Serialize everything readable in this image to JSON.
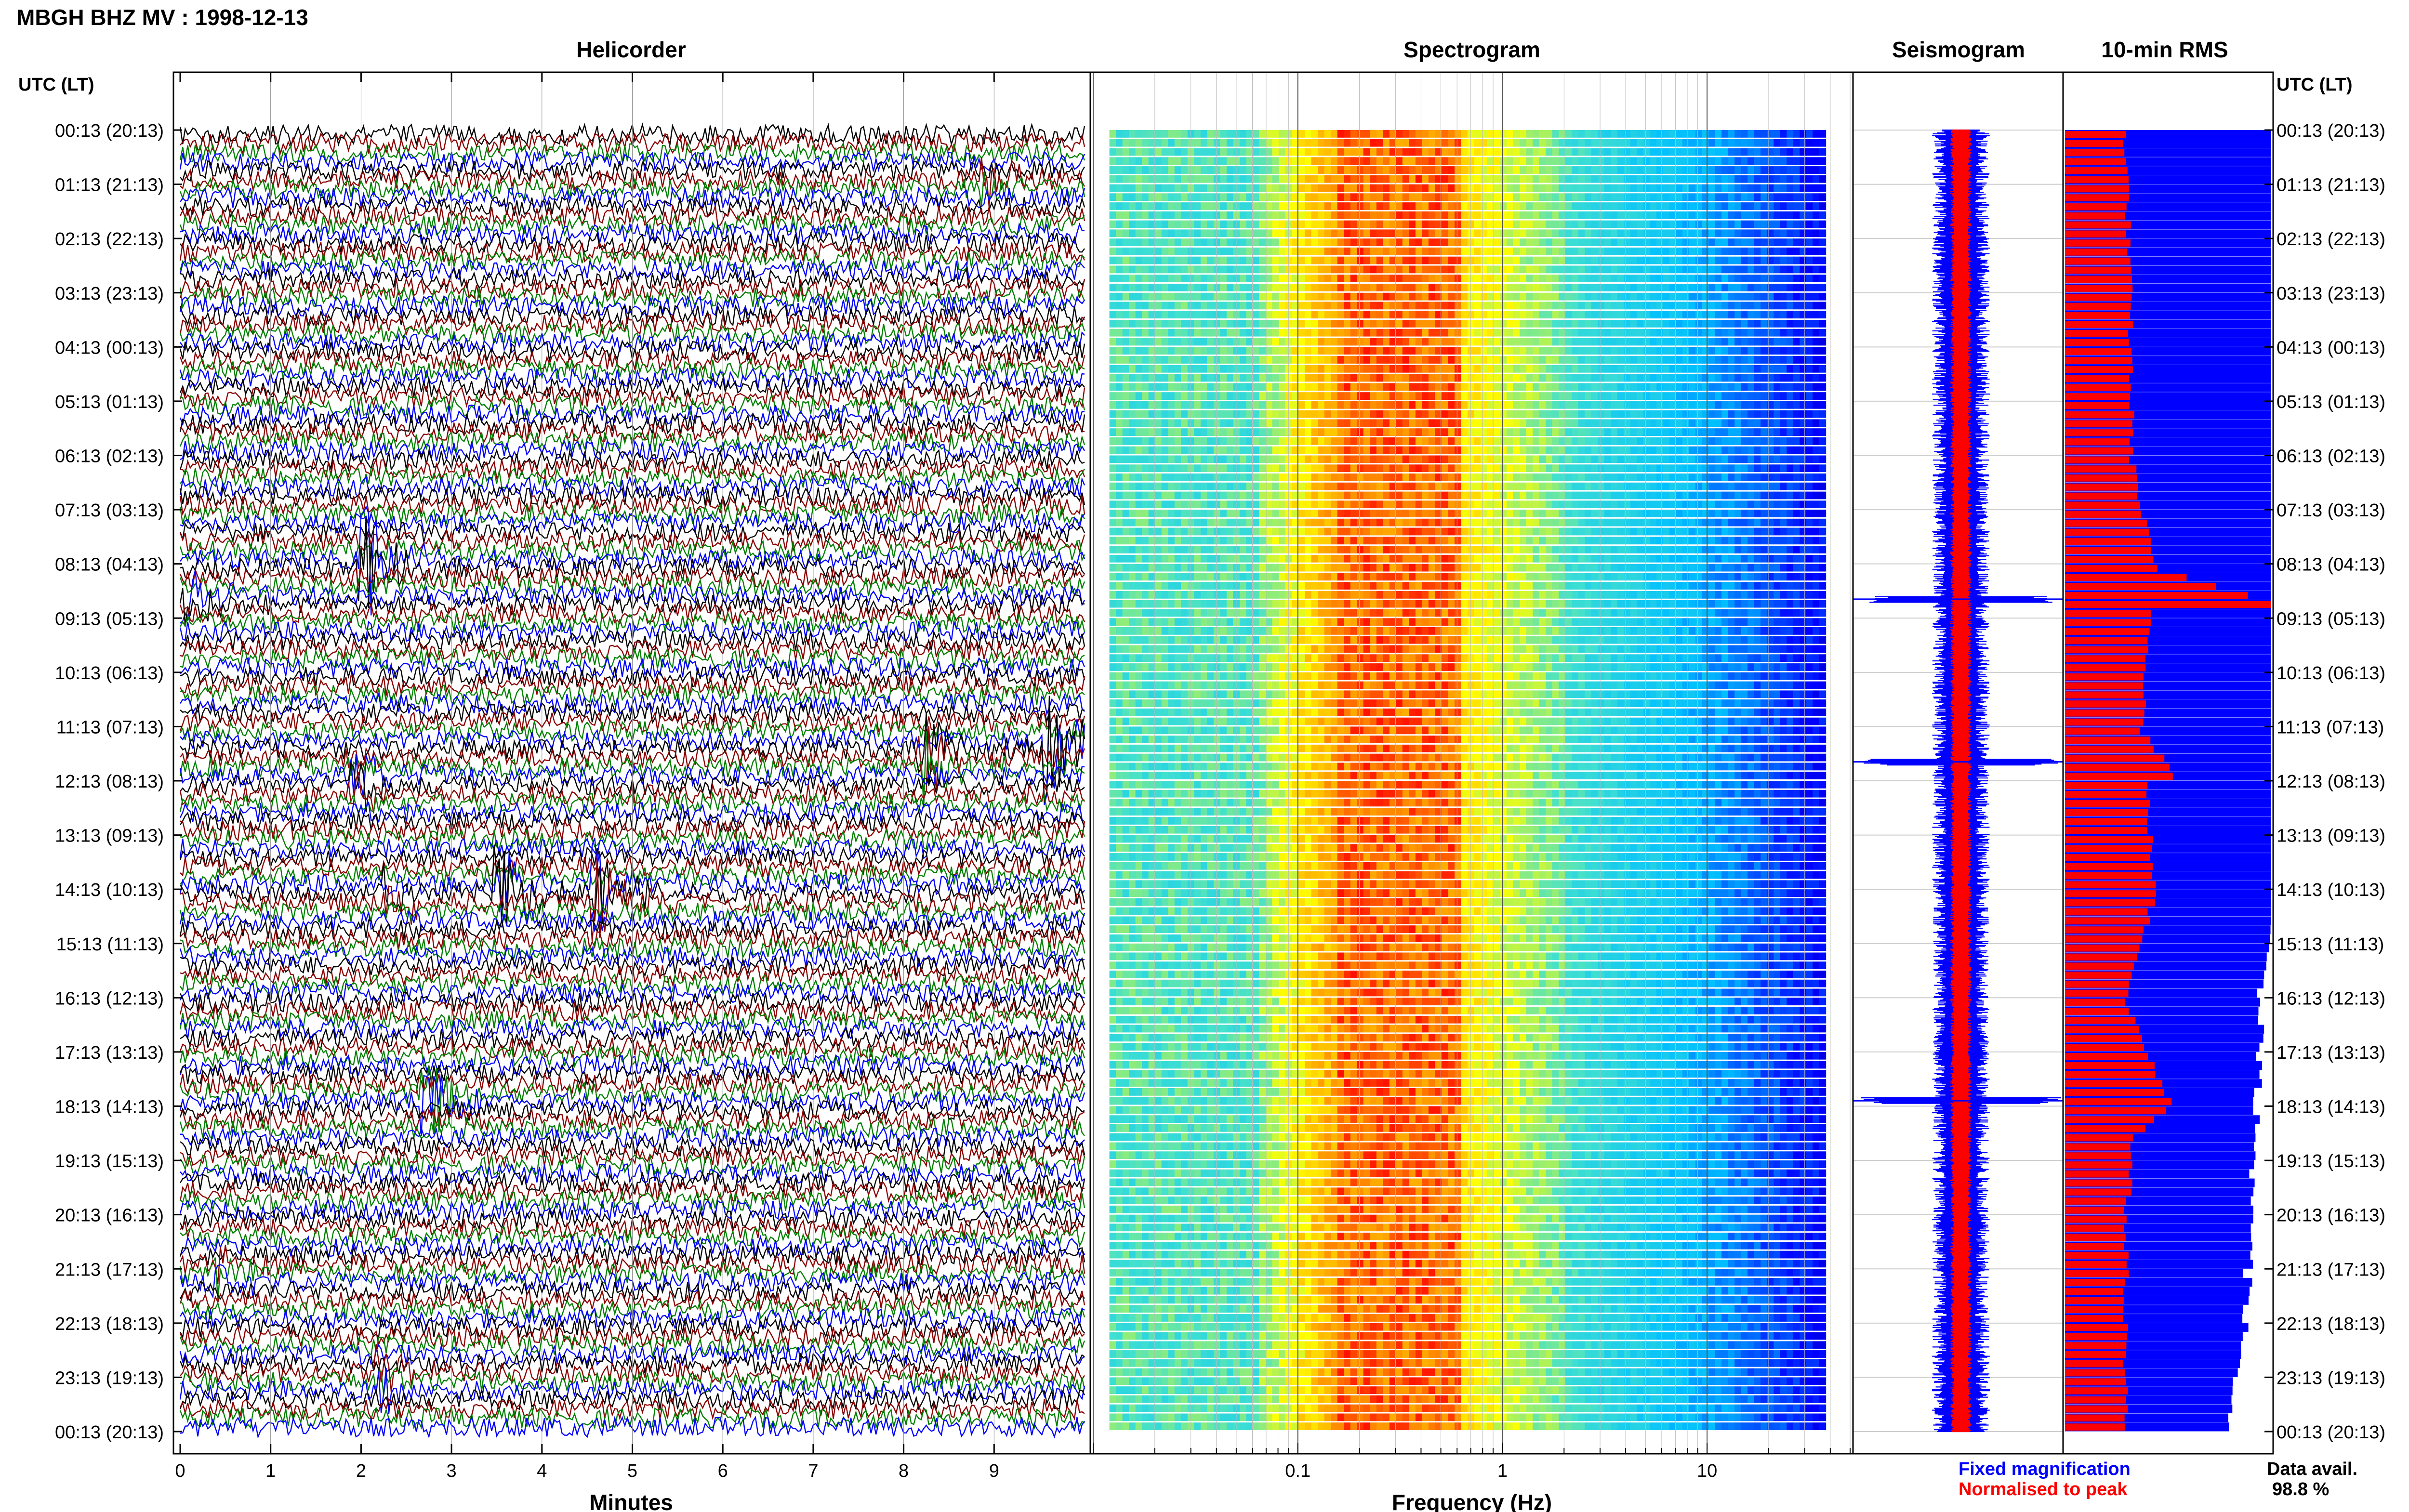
{
  "title": "MBGH BHZ MV : 1998-12-13",
  "time_axis_label": "UTC (LT)",
  "panels": {
    "helicorder": "Helicorder",
    "spectrogram": "Spectrogram",
    "seismogram": "Seismogram",
    "rms": "10-min RMS"
  },
  "time_labels": [
    "00:13 (20:13)",
    "01:13 (21:13)",
    "02:13 (22:13)",
    "03:13 (23:13)",
    "04:13 (00:13)",
    "05:13 (01:13)",
    "06:13 (02:13)",
    "07:13 (03:13)",
    "08:13 (04:13)",
    "09:13 (05:13)",
    "10:13 (06:13)",
    "11:13 (07:13)",
    "12:13 (08:13)",
    "13:13 (09:13)",
    "14:13 (10:13)",
    "15:13 (11:13)",
    "16:13 (12:13)",
    "17:13 (13:13)",
    "18:13 (14:13)",
    "19:13 (15:13)",
    "20:13 (16:13)",
    "21:13 (17:13)",
    "22:13 (18:13)",
    "23:13 (19:13)",
    "00:13 (20:13)"
  ],
  "legend": {
    "fixed": "Fixed magnification",
    "normalised": "Normalised to peak",
    "data_avail_label": "Data avail.",
    "data_avail_value": "98.8 %"
  },
  "colors": {
    "trace_cycle": [
      "#000000",
      "#8b0000",
      "#008000",
      "#0000ff"
    ],
    "fixed_magnification": "#0000ff",
    "normalised_to_peak": "#ff0000"
  },
  "chart_data": [
    {
      "type": "line",
      "panel": "helicorder",
      "xlabel": "Minutes",
      "x_ticks": [
        0,
        1,
        2,
        3,
        4,
        5,
        6,
        7,
        8,
        9
      ],
      "xlim": [
        0,
        10
      ],
      "rows": 144,
      "row_minutes": 10,
      "events": [
        {
          "hour": 0.9,
          "minute": 8.9,
          "amplitude": 0.6,
          "color": "blue"
        },
        {
          "hour": 7.9,
          "minute": 2.0,
          "amplitude": 1.6,
          "color": "green"
        },
        {
          "hour": 8.6,
          "minute": 0.0,
          "amplitude": 0.9,
          "color": "black"
        },
        {
          "hour": 11.3,
          "minute": 9.6,
          "amplitude": 1.5,
          "color": "darkred"
        },
        {
          "hour": 11.5,
          "minute": 8.2,
          "amplitude": 1.2,
          "color": "darkred"
        },
        {
          "hour": 12.0,
          "minute": 1.9,
          "amplitude": 0.8,
          "color": "darkred"
        },
        {
          "hour": 13.9,
          "minute": 3.5,
          "amplitude": 1.4,
          "color": "black"
        },
        {
          "hour": 14.0,
          "minute": 4.6,
          "amplitude": 1.0,
          "color": "blue"
        },
        {
          "hour": 14.1,
          "minute": 2.3,
          "amplitude": 0.7,
          "color": "blue"
        },
        {
          "hour": 17.8,
          "minute": 2.7,
          "amplitude": 1.3,
          "color": "black"
        },
        {
          "hour": 21.0,
          "minute": 0.4,
          "amplitude": 0.5,
          "color": "blue"
        },
        {
          "hour": 23.0,
          "minute": 2.2,
          "amplitude": 0.5,
          "color": "blue"
        }
      ]
    },
    {
      "type": "heatmap",
      "panel": "spectrogram",
      "xlabel": "Frequency (Hz)",
      "x_scale": "log",
      "x_ticks": [
        0.1,
        1,
        10
      ],
      "xlim": [
        0.01,
        50
      ],
      "peak_band_hz": [
        0.15,
        0.6
      ],
      "colormap": [
        "#00008b",
        "#0000ff",
        "#00bfff",
        "#40e0d0",
        "#ffff00",
        "#ff8c00",
        "#ff0000"
      ]
    },
    {
      "type": "line",
      "panel": "seismogram",
      "series": [
        {
          "name": "Fixed magnification",
          "color": "#0000ff"
        },
        {
          "name": "Normalised to peak",
          "color": "#ff0000"
        }
      ],
      "spikes_hour": [
        8.65,
        11.65,
        17.9
      ]
    },
    {
      "type": "bar",
      "panel": "rms",
      "orientation": "horizontal",
      "series": [
        {
          "name": "Fixed magnification",
          "color": "#0000ff"
        },
        {
          "name": "Normalised to peak",
          "color": "#ff0000"
        }
      ],
      "normalised_profile": [
        [
          0,
          0.28
        ],
        [
          3,
          0.3
        ],
        [
          6,
          0.31
        ],
        [
          7,
          0.36
        ],
        [
          8,
          0.42
        ],
        [
          8.65,
          1.0
        ],
        [
          9,
          0.4
        ],
        [
          11,
          0.36
        ],
        [
          11.7,
          0.5
        ],
        [
          12,
          0.38
        ],
        [
          14,
          0.42
        ],
        [
          16,
          0.28
        ],
        [
          17.9,
          0.5
        ],
        [
          18.5,
          0.32
        ],
        [
          20,
          0.28
        ],
        [
          24,
          0.28
        ]
      ],
      "fixed_profile": [
        [
          0,
          1.0
        ],
        [
          14.5,
          1.0
        ],
        [
          15.5,
          0.98
        ],
        [
          17,
          0.96
        ],
        [
          18.3,
          0.95
        ],
        [
          20,
          0.92
        ],
        [
          22,
          0.9
        ],
        [
          24,
          0.82
        ]
      ]
    }
  ]
}
